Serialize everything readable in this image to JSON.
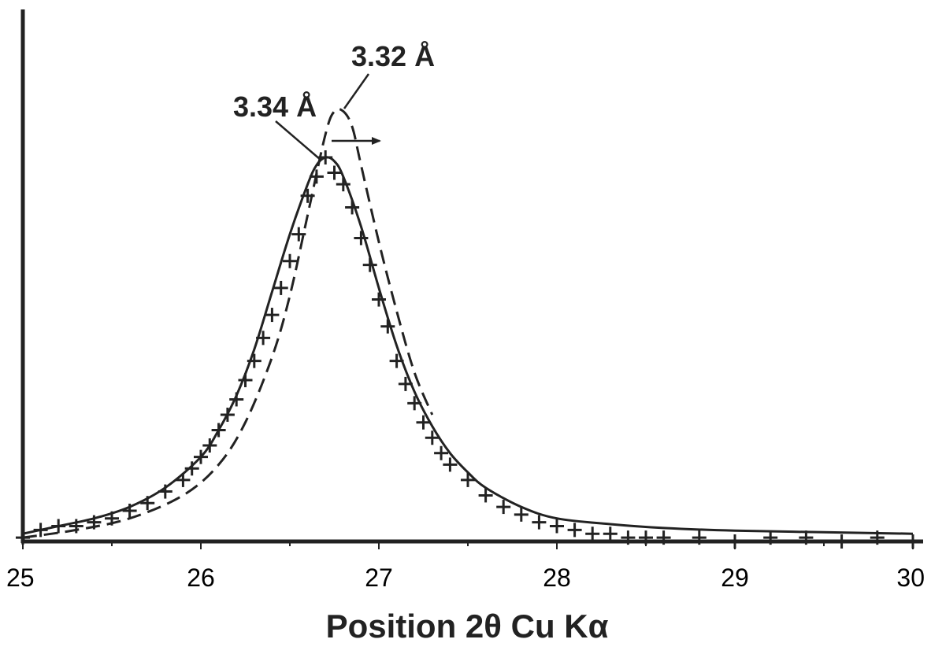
{
  "chart_data": {
    "type": "line",
    "title": "",
    "xlabel": "Position 2θ Cu Kα",
    "ylabel": "",
    "xlim": [
      25,
      30
    ],
    "ylim": [
      0,
      1.06
    ],
    "x_ticks": [
      "25",
      "26",
      "27",
      "28",
      "29",
      "30"
    ],
    "grid": false,
    "legend": "none",
    "annotations": [
      {
        "text": "3.34 Å",
        "points_to_x": 26.68,
        "points_to_y": 1.0
      },
      {
        "text": "3.32 Å",
        "points_to_x": 26.8,
        "points_to_y": 1.14,
        "note": "arrow indicates peak shift to higher angle"
      }
    ],
    "series": [
      {
        "style": "solid",
        "x": [
          25.0,
          25.2,
          25.4,
          25.6,
          25.8,
          26.0,
          26.1,
          26.2,
          26.3,
          26.4,
          26.5,
          26.6,
          26.65,
          26.7,
          26.75,
          26.8,
          26.9,
          27.0,
          27.1,
          27.2,
          27.3,
          27.4,
          27.5,
          27.6,
          27.8,
          28.0,
          28.3,
          28.6,
          29.0,
          29.5,
          30.0
        ],
        "y": [
          0.02,
          0.04,
          0.06,
          0.09,
          0.14,
          0.22,
          0.29,
          0.38,
          0.5,
          0.65,
          0.8,
          0.93,
          0.98,
          1.0,
          0.99,
          0.95,
          0.82,
          0.66,
          0.51,
          0.39,
          0.3,
          0.23,
          0.18,
          0.14,
          0.09,
          0.06,
          0.045,
          0.035,
          0.028,
          0.024,
          0.02
        ]
      },
      {
        "style": "dashed",
        "x": [
          25.0,
          25.3,
          25.6,
          25.9,
          26.1,
          26.25,
          26.4,
          26.5,
          26.6,
          26.7,
          26.75,
          26.8,
          26.85,
          26.9,
          27.0,
          27.1,
          27.2,
          27.3
        ],
        "y": [
          0.01,
          0.03,
          0.06,
          0.12,
          0.2,
          0.31,
          0.48,
          0.64,
          0.85,
          1.06,
          1.12,
          1.12,
          1.08,
          0.98,
          0.78,
          0.6,
          0.44,
          0.33
        ]
      },
      {
        "style": "markers-plus",
        "x": [
          25.0,
          25.1,
          25.2,
          25.3,
          25.4,
          25.5,
          25.6,
          25.7,
          25.8,
          25.9,
          25.95,
          26.0,
          26.05,
          26.1,
          26.15,
          26.2,
          26.25,
          26.3,
          26.35,
          26.4,
          26.45,
          26.5,
          26.55,
          26.6,
          26.65,
          26.7,
          26.75,
          26.8,
          26.85,
          26.9,
          26.95,
          27.0,
          27.05,
          27.1,
          27.15,
          27.2,
          27.25,
          27.3,
          27.35,
          27.4,
          27.5,
          27.6,
          27.7,
          27.8,
          27.9,
          28.0,
          28.1,
          28.2,
          28.3,
          28.4,
          28.5,
          28.6,
          28.8,
          29.0,
          29.2,
          29.4,
          29.6,
          29.8,
          30.0
        ],
        "y": [
          0.01,
          0.03,
          0.04,
          0.04,
          0.05,
          0.06,
          0.08,
          0.1,
          0.13,
          0.16,
          0.19,
          0.22,
          0.25,
          0.29,
          0.33,
          0.37,
          0.42,
          0.47,
          0.53,
          0.59,
          0.66,
          0.73,
          0.8,
          0.9,
          0.95,
          1.0,
          0.96,
          0.93,
          0.87,
          0.79,
          0.72,
          0.63,
          0.56,
          0.47,
          0.41,
          0.36,
          0.31,
          0.27,
          0.23,
          0.2,
          0.16,
          0.12,
          0.09,
          0.07,
          0.05,
          0.04,
          0.03,
          0.02,
          0.02,
          0.01,
          0.01,
          0.01,
          0.01,
          0.0,
          0.01,
          0.01,
          0.0,
          0.01,
          0.0
        ]
      }
    ]
  }
}
